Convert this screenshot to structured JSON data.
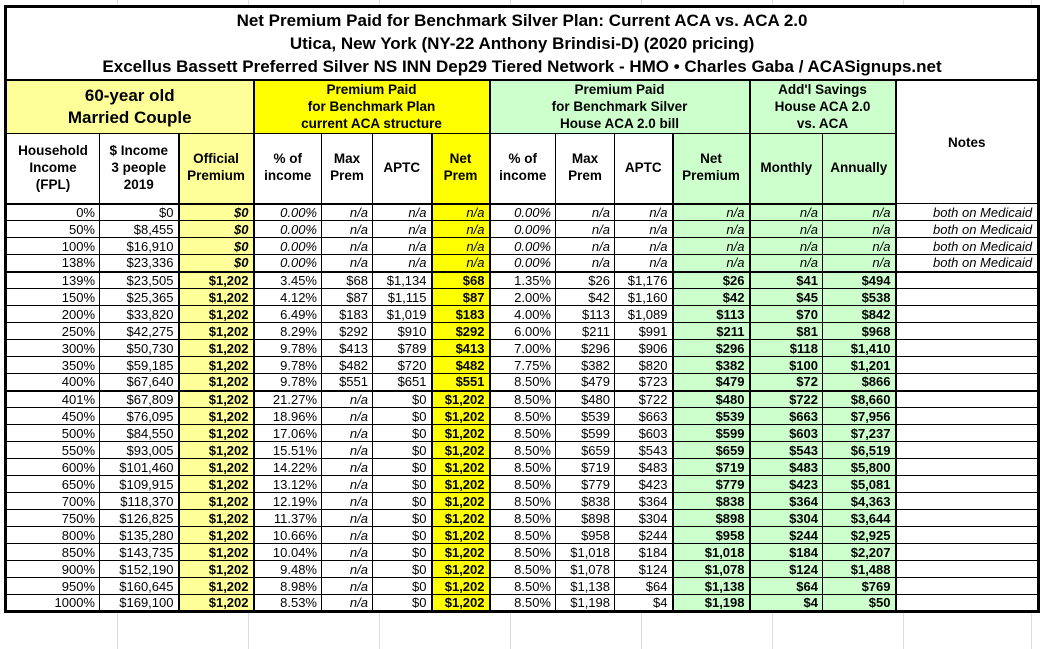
{
  "title": {
    "line1": "Net Premium Paid for Benchmark Silver Plan: Current ACA vs. ACA 2.0",
    "line2": "Utica, New York (NY-22 Anthony Brindisi-D) (2020 pricing)",
    "line3": "Excellus Bassett Preferred Silver NS INN Dep29 Tiered Network - HMO • Charles Gaba / ACASignups.net"
  },
  "groups": {
    "demographic": "60-year old\nMarried Couple",
    "current_aca": "Premium Paid\nfor Benchmark Plan\ncurrent ACA structure",
    "house_aca20": "Premium Paid\nfor Benchmark Silver\nHouse ACA 2.0 bill",
    "savings": "Add'l Savings\nHouse ACA 2.0\nvs. ACA",
    "notes": "Notes"
  },
  "columns": {
    "fpl": "Household\nIncome\n(FPL)",
    "income": "$ Income\n3 people\n2019",
    "official": "Official\nPremium",
    "aca_pct": "% of\nincome",
    "aca_max": "Max\nPrem",
    "aca_aptc": "APTC",
    "aca_net": "Net\nPrem",
    "h_pct": "% of\nincome",
    "h_max": "Max\nPrem",
    "h_aptc": "APTC",
    "h_net": "Net\nPremium",
    "monthly": "Monthly",
    "annually": "Annually"
  },
  "colors": {
    "light_yellow": "#FFFF99",
    "bright_yellow": "#FFFF00",
    "light_green": "#CCFFCC",
    "border": "#000000"
  },
  "rows": [
    {
      "fpl": "0%",
      "income": "$0",
      "official": "$0",
      "aca_pct": "0.00%",
      "aca_max": "n/a",
      "aca_aptc": "n/a",
      "aca_net": "n/a",
      "h_pct": "0.00%",
      "h_max": "n/a",
      "h_aptc": "n/a",
      "h_net": "n/a",
      "monthly": "n/a",
      "annually": "n/a",
      "note": "both on Medicaid",
      "medicaid": true
    },
    {
      "fpl": "50%",
      "income": "$8,455",
      "official": "$0",
      "aca_pct": "0.00%",
      "aca_max": "n/a",
      "aca_aptc": "n/a",
      "aca_net": "n/a",
      "h_pct": "0.00%",
      "h_max": "n/a",
      "h_aptc": "n/a",
      "h_net": "n/a",
      "monthly": "n/a",
      "annually": "n/a",
      "note": "both on Medicaid",
      "medicaid": true
    },
    {
      "fpl": "100%",
      "income": "$16,910",
      "official": "$0",
      "aca_pct": "0.00%",
      "aca_max": "n/a",
      "aca_aptc": "n/a",
      "aca_net": "n/a",
      "h_pct": "0.00%",
      "h_max": "n/a",
      "h_aptc": "n/a",
      "h_net": "n/a",
      "monthly": "n/a",
      "annually": "n/a",
      "note": "both on Medicaid",
      "medicaid": true
    },
    {
      "fpl": "138%",
      "income": "$23,336",
      "official": "$0",
      "aca_pct": "0.00%",
      "aca_max": "n/a",
      "aca_aptc": "n/a",
      "aca_net": "n/a",
      "h_pct": "0.00%",
      "h_max": "n/a",
      "h_aptc": "n/a",
      "h_net": "n/a",
      "monthly": "n/a",
      "annually": "n/a",
      "note": "both on Medicaid",
      "medicaid": true,
      "section_end": true
    },
    {
      "fpl": "139%",
      "income": "$23,505",
      "official": "$1,202",
      "aca_pct": "3.45%",
      "aca_max": "$68",
      "aca_aptc": "$1,134",
      "aca_net": "$68",
      "h_pct": "1.35%",
      "h_max": "$26",
      "h_aptc": "$1,176",
      "h_net": "$26",
      "monthly": "$41",
      "annually": "$494",
      "note": ""
    },
    {
      "fpl": "150%",
      "income": "$25,365",
      "official": "$1,202",
      "aca_pct": "4.12%",
      "aca_max": "$87",
      "aca_aptc": "$1,115",
      "aca_net": "$87",
      "h_pct": "2.00%",
      "h_max": "$42",
      "h_aptc": "$1,160",
      "h_net": "$42",
      "monthly": "$45",
      "annually": "$538",
      "note": ""
    },
    {
      "fpl": "200%",
      "income": "$33,820",
      "official": "$1,202",
      "aca_pct": "6.49%",
      "aca_max": "$183",
      "aca_aptc": "$1,019",
      "aca_net": "$183",
      "h_pct": "4.00%",
      "h_max": "$113",
      "h_aptc": "$1,089",
      "h_net": "$113",
      "monthly": "$70",
      "annually": "$842",
      "note": ""
    },
    {
      "fpl": "250%",
      "income": "$42,275",
      "official": "$1,202",
      "aca_pct": "8.29%",
      "aca_max": "$292",
      "aca_aptc": "$910",
      "aca_net": "$292",
      "h_pct": "6.00%",
      "h_max": "$211",
      "h_aptc": "$991",
      "h_net": "$211",
      "monthly": "$81",
      "annually": "$968",
      "note": ""
    },
    {
      "fpl": "300%",
      "income": "$50,730",
      "official": "$1,202",
      "aca_pct": "9.78%",
      "aca_max": "$413",
      "aca_aptc": "$789",
      "aca_net": "$413",
      "h_pct": "7.00%",
      "h_max": "$296",
      "h_aptc": "$906",
      "h_net": "$296",
      "monthly": "$118",
      "annually": "$1,410",
      "note": ""
    },
    {
      "fpl": "350%",
      "income": "$59,185",
      "official": "$1,202",
      "aca_pct": "9.78%",
      "aca_max": "$482",
      "aca_aptc": "$720",
      "aca_net": "$482",
      "h_pct": "7.75%",
      "h_max": "$382",
      "h_aptc": "$820",
      "h_net": "$382",
      "monthly": "$100",
      "annually": "$1,201",
      "note": ""
    },
    {
      "fpl": "400%",
      "income": "$67,640",
      "official": "$1,202",
      "aca_pct": "9.78%",
      "aca_max": "$551",
      "aca_aptc": "$651",
      "aca_net": "$551",
      "h_pct": "8.50%",
      "h_max": "$479",
      "h_aptc": "$723",
      "h_net": "$479",
      "monthly": "$72",
      "annually": "$866",
      "note": "",
      "section_end": true
    },
    {
      "fpl": "401%",
      "income": "$67,809",
      "official": "$1,202",
      "aca_pct": "21.27%",
      "aca_max": "n/a",
      "aca_aptc": "$0",
      "aca_net": "$1,202",
      "h_pct": "8.50%",
      "h_max": "$480",
      "h_aptc": "$722",
      "h_net": "$480",
      "monthly": "$722",
      "annually": "$8,660",
      "note": ""
    },
    {
      "fpl": "450%",
      "income": "$76,095",
      "official": "$1,202",
      "aca_pct": "18.96%",
      "aca_max": "n/a",
      "aca_aptc": "$0",
      "aca_net": "$1,202",
      "h_pct": "8.50%",
      "h_max": "$539",
      "h_aptc": "$663",
      "h_net": "$539",
      "monthly": "$663",
      "annually": "$7,956",
      "note": ""
    },
    {
      "fpl": "500%",
      "income": "$84,550",
      "official": "$1,202",
      "aca_pct": "17.06%",
      "aca_max": "n/a",
      "aca_aptc": "$0",
      "aca_net": "$1,202",
      "h_pct": "8.50%",
      "h_max": "$599",
      "h_aptc": "$603",
      "h_net": "$599",
      "monthly": "$603",
      "annually": "$7,237",
      "note": ""
    },
    {
      "fpl": "550%",
      "income": "$93,005",
      "official": "$1,202",
      "aca_pct": "15.51%",
      "aca_max": "n/a",
      "aca_aptc": "$0",
      "aca_net": "$1,202",
      "h_pct": "8.50%",
      "h_max": "$659",
      "h_aptc": "$543",
      "h_net": "$659",
      "monthly": "$543",
      "annually": "$6,519",
      "note": ""
    },
    {
      "fpl": "600%",
      "income": "$101,460",
      "official": "$1,202",
      "aca_pct": "14.22%",
      "aca_max": "n/a",
      "aca_aptc": "$0",
      "aca_net": "$1,202",
      "h_pct": "8.50%",
      "h_max": "$719",
      "h_aptc": "$483",
      "h_net": "$719",
      "monthly": "$483",
      "annually": "$5,800",
      "note": ""
    },
    {
      "fpl": "650%",
      "income": "$109,915",
      "official": "$1,202",
      "aca_pct": "13.12%",
      "aca_max": "n/a",
      "aca_aptc": "$0",
      "aca_net": "$1,202",
      "h_pct": "8.50%",
      "h_max": "$779",
      "h_aptc": "$423",
      "h_net": "$779",
      "monthly": "$423",
      "annually": "$5,081",
      "note": ""
    },
    {
      "fpl": "700%",
      "income": "$118,370",
      "official": "$1,202",
      "aca_pct": "12.19%",
      "aca_max": "n/a",
      "aca_aptc": "$0",
      "aca_net": "$1,202",
      "h_pct": "8.50%",
      "h_max": "$838",
      "h_aptc": "$364",
      "h_net": "$838",
      "monthly": "$364",
      "annually": "$4,363",
      "note": ""
    },
    {
      "fpl": "750%",
      "income": "$126,825",
      "official": "$1,202",
      "aca_pct": "11.37%",
      "aca_max": "n/a",
      "aca_aptc": "$0",
      "aca_net": "$1,202",
      "h_pct": "8.50%",
      "h_max": "$898",
      "h_aptc": "$304",
      "h_net": "$898",
      "monthly": "$304",
      "annually": "$3,644",
      "note": ""
    },
    {
      "fpl": "800%",
      "income": "$135,280",
      "official": "$1,202",
      "aca_pct": "10.66%",
      "aca_max": "n/a",
      "aca_aptc": "$0",
      "aca_net": "$1,202",
      "h_pct": "8.50%",
      "h_max": "$958",
      "h_aptc": "$244",
      "h_net": "$958",
      "monthly": "$244",
      "annually": "$2,925",
      "note": ""
    },
    {
      "fpl": "850%",
      "income": "$143,735",
      "official": "$1,202",
      "aca_pct": "10.04%",
      "aca_max": "n/a",
      "aca_aptc": "$0",
      "aca_net": "$1,202",
      "h_pct": "8.50%",
      "h_max": "$1,018",
      "h_aptc": "$184",
      "h_net": "$1,018",
      "monthly": "$184",
      "annually": "$2,207",
      "note": ""
    },
    {
      "fpl": "900%",
      "income": "$152,190",
      "official": "$1,202",
      "aca_pct": "9.48%",
      "aca_max": "n/a",
      "aca_aptc": "$0",
      "aca_net": "$1,202",
      "h_pct": "8.50%",
      "h_max": "$1,078",
      "h_aptc": "$124",
      "h_net": "$1,078",
      "monthly": "$124",
      "annually": "$1,488",
      "note": ""
    },
    {
      "fpl": "950%",
      "income": "$160,645",
      "official": "$1,202",
      "aca_pct": "8.98%",
      "aca_max": "n/a",
      "aca_aptc": "$0",
      "aca_net": "$1,202",
      "h_pct": "8.50%",
      "h_max": "$1,138",
      "h_aptc": "$64",
      "h_net": "$1,138",
      "monthly": "$64",
      "annually": "$769",
      "note": ""
    },
    {
      "fpl": "1000%",
      "income": "$169,100",
      "official": "$1,202",
      "aca_pct": "8.53%",
      "aca_max": "n/a",
      "aca_aptc": "$0",
      "aca_net": "$1,202",
      "h_pct": "8.50%",
      "h_max": "$1,198",
      "h_aptc": "$4",
      "h_net": "$1,198",
      "monthly": "$4",
      "annually": "$50",
      "note": ""
    }
  ]
}
